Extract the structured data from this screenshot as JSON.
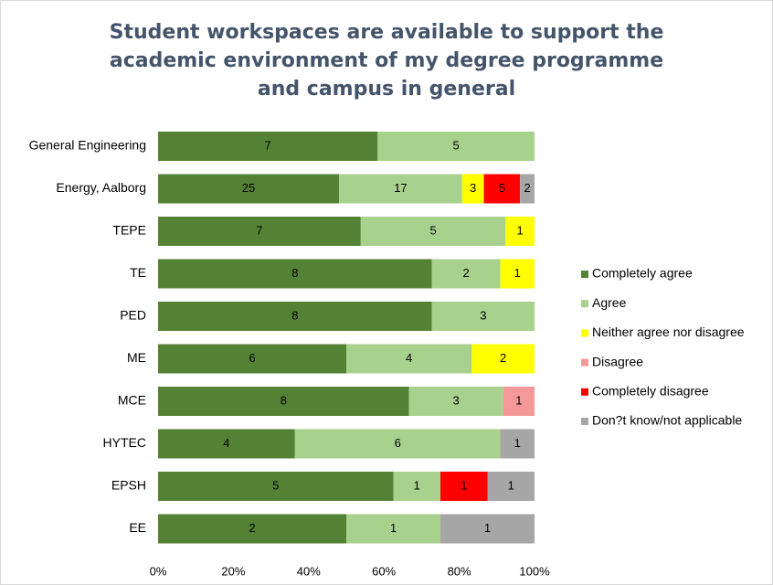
{
  "chart_data": {
    "type": "bar",
    "orientation": "horizontal",
    "stacked": "percent",
    "title": "Student workspaces are available to support the academic environment of my degree programme and campus in general",
    "categories": [
      "General Engineering",
      "Energy, Aalborg",
      "TEPE",
      "TE",
      "PED",
      "ME",
      "MCE",
      "HYTEC",
      "EPSH",
      "EE"
    ],
    "series": [
      {
        "name": "Completely agree",
        "color": "#548235",
        "values": [
          7,
          25,
          7,
          8,
          8,
          6,
          8,
          4,
          5,
          2
        ]
      },
      {
        "name": "Agree",
        "color": "#a9d18e",
        "values": [
          5,
          17,
          5,
          2,
          3,
          4,
          3,
          6,
          1,
          1
        ]
      },
      {
        "name": "Neither agree nor disagree",
        "color": "#ffff00",
        "values": [
          null,
          3,
          1,
          1,
          null,
          2,
          null,
          null,
          null,
          null
        ]
      },
      {
        "name": "Disagree",
        "color": "#f4999a",
        "values": [
          null,
          null,
          null,
          null,
          null,
          null,
          1,
          null,
          null,
          null
        ]
      },
      {
        "name": "Completely disagree",
        "color": "#ff0000",
        "values": [
          null,
          5,
          null,
          null,
          null,
          null,
          null,
          null,
          1,
          null
        ]
      },
      {
        "name": "Don?t know/not applicable",
        "color": "#a6a6a6",
        "values": [
          null,
          2,
          null,
          null,
          null,
          null,
          null,
          1,
          1,
          1
        ]
      }
    ],
    "xlim": [
      0,
      100
    ],
    "xticks": [
      {
        "value": 0,
        "label": "0%"
      },
      {
        "value": 20,
        "label": "20%"
      },
      {
        "value": 40,
        "label": "40%"
      },
      {
        "value": 60,
        "label": "60%"
      },
      {
        "value": 80,
        "label": "80%"
      },
      {
        "value": 100,
        "label": "100%"
      }
    ],
    "legend": "right",
    "grid": false
  }
}
